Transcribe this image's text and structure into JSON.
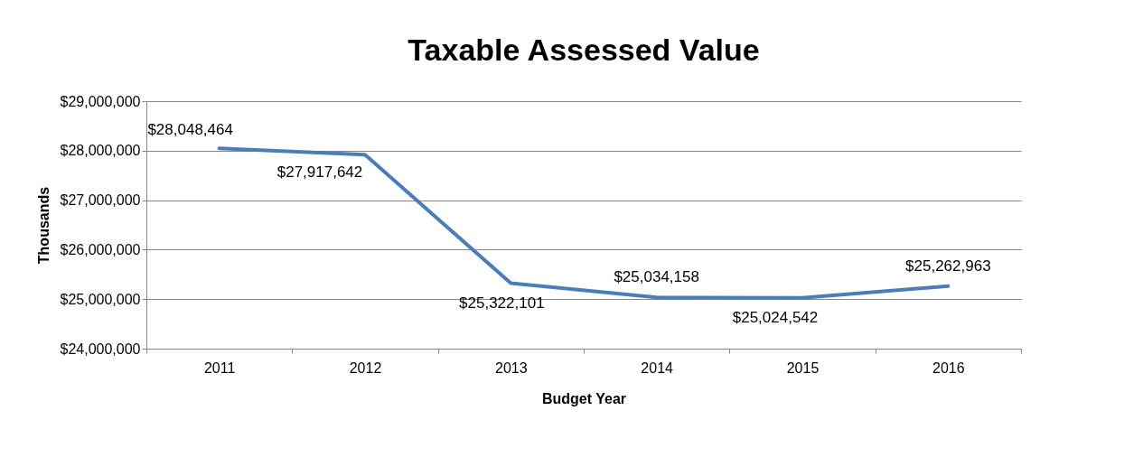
{
  "chart_data": {
    "type": "line",
    "title": "Taxable Assessed Value",
    "xlabel": "Budget Year",
    "ylabel": "Thousands",
    "categories": [
      "2011",
      "2012",
      "2013",
      "2014",
      "2015",
      "2016"
    ],
    "series": [
      {
        "color": "#4a7ebb",
        "values": [
          28048464,
          27917642,
          25322101,
          25034158,
          25024542,
          25262963
        ],
        "value_labels": [
          "$28,048,464",
          "$27,917,642",
          "$25,322,101",
          "$25,034,158",
          "$25,024,542",
          "$25,262,963"
        ]
      }
    ],
    "ylim": [
      24000000,
      29000000
    ],
    "yticks": [
      {
        "value": 24000000,
        "label": "$24,000,000"
      },
      {
        "value": 25000000,
        "label": "$25,000,000"
      },
      {
        "value": 26000000,
        "label": "$26,000,000"
      },
      {
        "value": 27000000,
        "label": "$27,000,000"
      },
      {
        "value": 28000000,
        "label": "$28,000,000"
      },
      {
        "value": 29000000,
        "label": "$29,000,000"
      }
    ],
    "grid": "y",
    "marker": "none",
    "line_style": "solid"
  }
}
